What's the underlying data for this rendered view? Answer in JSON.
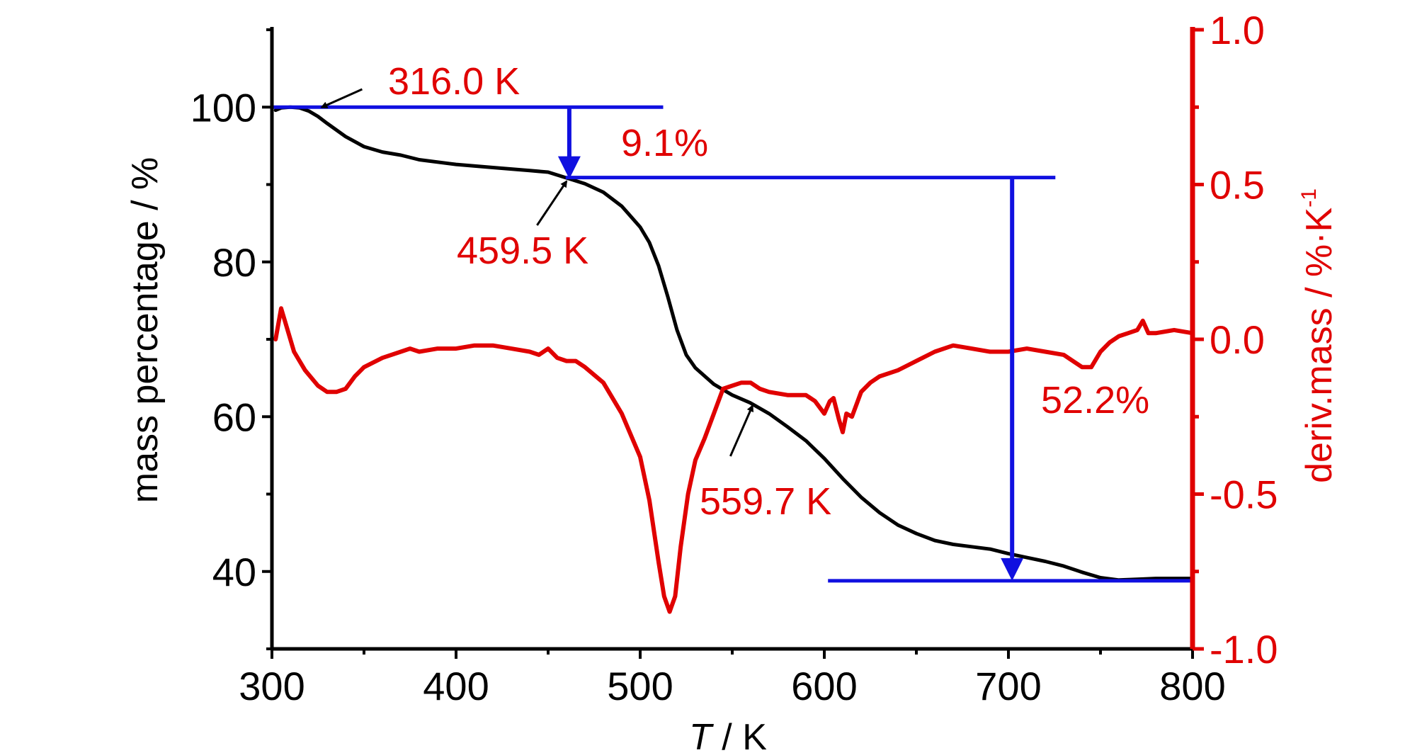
{
  "chart_data": {
    "type": "line",
    "title": "",
    "xlabel_italic": "T",
    "xlabel_unit": " / K",
    "ylabel_left": "mass percentage / %",
    "ylabel_right_main": "deriv.mass / %·K",
    "ylabel_right_sup": "-1",
    "xlim": [
      300,
      800
    ],
    "ylim_left": [
      30,
      110
    ],
    "ylim_right": [
      -1.0,
      1.0
    ],
    "x_ticks": [
      "300",
      "400",
      "500",
      "600",
      "700",
      "800"
    ],
    "y_left_ticks": [
      "40",
      "60",
      "80",
      "100"
    ],
    "y_right_ticks": [
      "-1.0",
      "-0.5",
      "0.0",
      "0.5",
      "1.0"
    ],
    "colors": {
      "mass": "#000000",
      "deriv": "#e00000",
      "annotation": "#1010e0",
      "label": "#e00000"
    },
    "series": [
      {
        "axis": "left",
        "x": [
          302,
          305,
          310,
          315,
          320,
          325,
          330,
          340,
          350,
          360,
          370,
          380,
          400,
          420,
          440,
          450,
          459.5,
          470,
          480,
          490,
          500,
          505,
          510,
          515,
          520,
          525,
          530,
          540,
          550,
          559.7,
          570,
          580,
          590,
          600,
          610,
          620,
          630,
          640,
          650,
          660,
          670,
          680,
          690,
          700,
          710,
          720,
          730,
          740,
          750,
          760,
          770,
          780,
          790,
          800
        ],
        "values": [
          99.6,
          99.9,
          100.0,
          99.9,
          99.5,
          98.8,
          97.9,
          96.2,
          94.9,
          94.2,
          93.8,
          93.2,
          92.6,
          92.2,
          91.8,
          91.6,
          90.9,
          90.1,
          89.0,
          87.2,
          84.5,
          82.5,
          79.5,
          75.5,
          71.2,
          68.0,
          66.3,
          64.2,
          62.8,
          61.8,
          60.4,
          58.7,
          56.9,
          54.6,
          52.0,
          49.6,
          47.6,
          46.0,
          44.9,
          44.0,
          43.5,
          43.2,
          42.9,
          42.3,
          41.8,
          41.3,
          40.7,
          39.9,
          39.2,
          38.9,
          39.0,
          39.1,
          39.1,
          39.1
        ]
      },
      {
        "axis": "right",
        "x": [
          302,
          305,
          308,
          312,
          318,
          325,
          330,
          335,
          340,
          345,
          350,
          360,
          370,
          375,
          380,
          390,
          400,
          410,
          420,
          430,
          440,
          445,
          450,
          455,
          460,
          465,
          470,
          480,
          490,
          500,
          505,
          510,
          513,
          516,
          519,
          522,
          526,
          530,
          535,
          540,
          545,
          550,
          555,
          560,
          565,
          570,
          580,
          590,
          595,
          600,
          603,
          605,
          608,
          610,
          612,
          615,
          620,
          625,
          630,
          640,
          650,
          660,
          670,
          680,
          690,
          700,
          710,
          720,
          730,
          740,
          745,
          750,
          755,
          760,
          765,
          770,
          773,
          776,
          780,
          790,
          800
        ],
        "values": [
          0.0,
          0.1,
          0.04,
          -0.04,
          -0.1,
          -0.15,
          -0.17,
          -0.17,
          -0.16,
          -0.12,
          -0.09,
          -0.06,
          -0.04,
          -0.03,
          -0.04,
          -0.03,
          -0.03,
          -0.02,
          -0.02,
          -0.03,
          -0.04,
          -0.05,
          -0.03,
          -0.06,
          -0.07,
          -0.07,
          -0.09,
          -0.14,
          -0.24,
          -0.38,
          -0.52,
          -0.72,
          -0.83,
          -0.88,
          -0.83,
          -0.67,
          -0.5,
          -0.39,
          -0.32,
          -0.24,
          -0.16,
          -0.15,
          -0.14,
          -0.14,
          -0.16,
          -0.17,
          -0.18,
          -0.18,
          -0.2,
          -0.24,
          -0.2,
          -0.19,
          -0.26,
          -0.3,
          -0.24,
          -0.25,
          -0.17,
          -0.14,
          -0.12,
          -0.1,
          -0.07,
          -0.04,
          -0.02,
          -0.03,
          -0.04,
          -0.04,
          -0.03,
          -0.04,
          -0.05,
          -0.09,
          -0.09,
          -0.04,
          -0.01,
          0.01,
          0.02,
          0.03,
          0.06,
          0.02,
          0.02,
          0.03,
          0.02
        ]
      }
    ],
    "annotations": {
      "onset1_label": "316.0 K",
      "onset2_label": "459.5 K",
      "onset3_label": "559.7 K",
      "loss1_label": "9.1%",
      "loss2_label": "52.2%",
      "onset1_x": 316.0,
      "onset2_x": 459.5,
      "onset3_x": 559.7,
      "level1": 100.0,
      "level2": 90.9,
      "level3": 38.8
    }
  }
}
